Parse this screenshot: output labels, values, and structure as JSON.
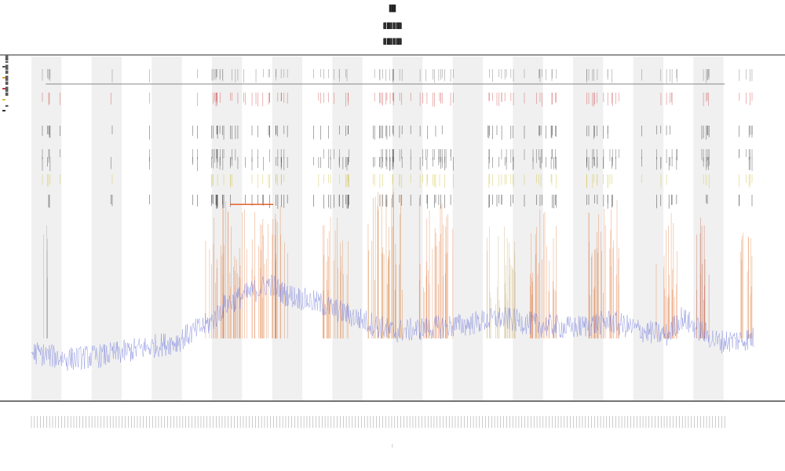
{
  "chart_data": {
    "type": "line",
    "title": "███",
    "subtitles": [
      "(██ ████ ██ ████)",
      "(██ ████ ██ ████)"
    ],
    "xlabel": "t",
    "xlim": [
      0,
      100
    ],
    "ylim": [
      0,
      100
    ],
    "grid": false,
    "shaded_bands": true,
    "band_count": 12,
    "legend_position": "top-left",
    "legend": [
      "█ ███",
      "██ ███",
      "██ ███",
      "██ ███",
      "█"
    ],
    "series": [
      {
        "type": "line",
        "color": "#6f78d8",
        "x": [
          0,
          5,
          10,
          15,
          20,
          25,
          27,
          30,
          33,
          35,
          40,
          45,
          50,
          55,
          60,
          65,
          70,
          75,
          80,
          85,
          88,
          90,
          95,
          100
        ],
        "y": [
          14,
          12,
          13,
          15,
          17,
          23,
          28,
          31,
          34,
          31,
          28,
          24,
          20,
          21,
          22,
          24,
          22,
          21,
          23,
          20,
          19,
          24,
          17,
          18
        ]
      },
      {
        "type": "segment",
        "color": "#e0602a",
        "x": [
          27.5,
          33.5
        ],
        "y": [
          57,
          57
        ]
      },
      {
        "type": "horizontal_line",
        "color": "#888888",
        "y": 92
      }
    ],
    "spike_clusters": [
      {
        "center": 2,
        "width": 1,
        "height": 60,
        "color": "#999999"
      },
      {
        "center": 27,
        "width": 6,
        "height": 75,
        "color": "#e07030"
      },
      {
        "center": 33,
        "width": 5,
        "height": 70,
        "color": "#e07030"
      },
      {
        "center": 42,
        "width": 4,
        "height": 65,
        "color": "#e08040"
      },
      {
        "center": 49,
        "width": 5,
        "height": 80,
        "color": "#d07020"
      },
      {
        "center": 56,
        "width": 5,
        "height": 75,
        "color": "#e07030"
      },
      {
        "center": 65,
        "width": 4,
        "height": 60,
        "color": "#c0a060"
      },
      {
        "center": 71,
        "width": 4,
        "height": 70,
        "color": "#e07030"
      },
      {
        "center": 79,
        "width": 5,
        "height": 75,
        "color": "#e07030"
      },
      {
        "center": 88,
        "width": 3,
        "height": 70,
        "color": "#e07030"
      },
      {
        "center": 93,
        "width": 2,
        "height": 65,
        "color": "#c05030"
      },
      {
        "center": 99,
        "width": 2,
        "height": 60,
        "color": "#e08040"
      }
    ]
  }
}
